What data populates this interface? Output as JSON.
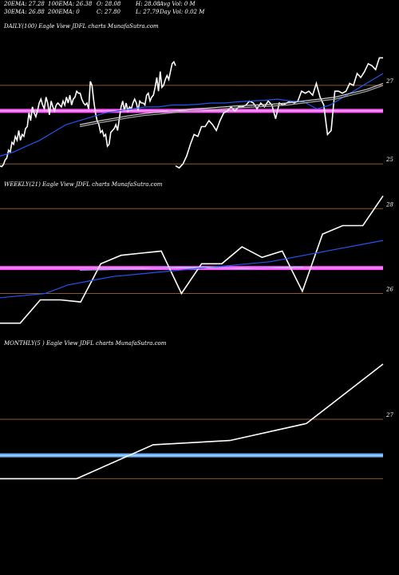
{
  "header": {
    "row1": [
      {
        "label": "20EMA: 27.28"
      },
      {
        "label": "100EMA: 26.38"
      },
      {
        "label": "O: 28.08"
      },
      {
        "label": "H: 28.08"
      },
      {
        "label": "Avg Vol: 0  M"
      }
    ],
    "row2": [
      {
        "label": "30EMA: 26.88"
      },
      {
        "label": "200EMA: 0"
      },
      {
        "label": "C: 27.80"
      },
      {
        "label": "L: 27.79"
      },
      {
        "label": "Day Vol: 0.02  M"
      }
    ]
  },
  "chart_data": [
    {
      "type": "line",
      "title": "DAILY(100) Eagle  View  JDFL charts MunafaSutra.com",
      "ylim": [
        24.7,
        28.4
      ],
      "ticks": [
        {
          "value": 27,
          "label": "27"
        },
        {
          "value": 25,
          "label": "25"
        }
      ],
      "hlines": [
        {
          "value": 27.0,
          "color": "#8b5a2b"
        },
        {
          "value": 25.0,
          "color": "#8b5a2b"
        },
        {
          "value": 26.35,
          "color": "#ff55ff"
        }
      ],
      "series": [
        {
          "color": "#ffffff",
          "values": [
            24.95,
            24.93,
            24.98,
            25.1,
            25.15,
            25.35,
            25.3,
            25.55,
            25.5,
            25.7,
            25.6,
            25.85,
            25.6,
            25.75,
            25.7,
            25.9,
            25.95,
            26.3,
            26.1,
            26.45,
            26.3,
            26.2,
            26.35,
            26.55,
            26.65,
            26.5,
            26.4,
            26.7,
            26.55,
            26.25,
            26.6,
            26.45,
            26.35,
            26.5,
            26.55,
            26.5,
            26.45,
            26.6,
            26.5,
            26.7,
            26.55,
            26.75,
            26.5,
            26.65,
            26.7,
            26.85,
            26.8,
            26.8,
            26.65,
            26.55,
            26.5,
            26.55,
            26.4,
            27.1,
            27.0,
            26.6,
            26.3,
            26.1,
            26.0,
            25.8,
            25.85,
            25.7,
            25.75,
            25.45,
            25.5,
            25.8,
            25.85,
            25.9,
            26.0,
            25.85,
            26.15,
            26.45,
            26.6,
            26.35,
            26.55,
            26.35,
            26.45,
            26.4,
            26.55,
            26.65,
            26.55,
            26.35,
            26.6,
            26.55,
            26.55,
            26.5,
            26.75,
            26.8,
            26.6,
            26.7,
            26.75,
            26.95,
            27.2,
            26.85,
            27.35,
            26.95,
            27.0,
            27.15,
            27.25,
            27.15,
            27.35,
            27.55,
            27.6,
            27.5
          ]
        },
        {
          "color": "#ffffff",
          "values": [
            24.95,
            24.9,
            25.0,
            25.2,
            25.5,
            25.75,
            25.7,
            25.95,
            25.95,
            26.1,
            26.0,
            25.85,
            26.1,
            26.3,
            26.35,
            26.45,
            26.35,
            26.45,
            26.45,
            26.5,
            26.6,
            26.55,
            26.4,
            26.55,
            26.45,
            26.6,
            26.5,
            26.15,
            26.55,
            26.5,
            26.55,
            26.6,
            26.55,
            26.6,
            26.85,
            26.8,
            26.85,
            26.75,
            27.05,
            26.7,
            26.5,
            25.75,
            25.85,
            26.85,
            26.85,
            26.8,
            26.85,
            27.05,
            27.0,
            27.3,
            27.2,
            27.35,
            27.55,
            27.5,
            27.4,
            27.7,
            27.7
          ]
        },
        {
          "color": "#2255ee",
          "values": [
            25.2,
            25.3,
            25.45,
            25.6,
            25.8,
            26.0,
            26.1,
            26.2,
            26.3,
            26.35,
            26.4,
            26.45,
            26.45,
            26.5,
            26.5,
            26.52,
            26.55,
            26.55,
            26.58,
            26.6,
            26.62,
            26.65,
            26.6,
            26.58,
            26.4,
            26.5,
            26.7,
            26.9,
            27.1,
            27.3
          ]
        },
        {
          "color": "#cccccc",
          "values": [
            26.0,
            26.08,
            26.15,
            26.22,
            26.28,
            26.32,
            26.36,
            26.4,
            26.42,
            26.45,
            26.48,
            26.5,
            26.52,
            26.55,
            26.6,
            26.65,
            26.7,
            26.8,
            26.9,
            27.05
          ]
        },
        {
          "color": "#aaaaaa",
          "values": [
            25.95,
            26.03,
            26.1,
            26.17,
            26.23,
            26.27,
            26.31,
            26.35,
            26.37,
            26.4,
            26.43,
            26.45,
            26.47,
            26.5,
            26.55,
            26.6,
            26.65,
            26.75,
            26.85,
            27.0
          ]
        }
      ]
    },
    {
      "type": "line",
      "title": "WEEKLY(21) Eagle  View  JDFL charts MunafaSutra.com",
      "ylim": [
        25.2,
        28.4
      ],
      "ticks": [
        {
          "value": 28,
          "label": "28"
        },
        {
          "value": 26,
          "label": "26"
        }
      ],
      "hlines": [
        {
          "value": 28.0,
          "color": "#8b5a2b"
        },
        {
          "value": 26.0,
          "color": "#8b5a2b"
        },
        {
          "value": 26.6,
          "color": "#ff55ff"
        }
      ],
      "series": [
        {
          "color": "#ffffff",
          "values": [
            25.3,
            25.3,
            25.85,
            25.85,
            25.8,
            26.7,
            26.9,
            26.95,
            27.0,
            26.0,
            26.7,
            26.7,
            27.1,
            26.85,
            27.0,
            26.05,
            27.4,
            27.6,
            27.6,
            28.3
          ]
        },
        {
          "color": "#2255ee",
          "values": [
            25.9,
            25.95,
            26.0,
            26.2,
            26.3,
            26.4,
            26.45,
            26.5,
            26.55,
            26.6,
            26.65,
            26.7,
            26.75,
            26.85,
            26.95,
            27.05,
            27.15,
            27.25
          ]
        },
        {
          "color": "#aaaaff",
          "values": [
            26.55,
            26.56,
            26.57,
            26.58,
            26.6,
            26.62,
            26.62,
            26.6,
            26.58,
            26.6,
            26.62,
            26.63
          ]
        }
      ]
    },
    {
      "type": "line",
      "title": "MONTHLY(5                     ) Eagle  View  JDFL charts MunafaSutra.com",
      "ylim": [
        25.4,
        28.6
      ],
      "ticks": [
        {
          "value": 27,
          "label": "27"
        }
      ],
      "hlines": [
        {
          "value": 27.0,
          "color": "#8b5a2b"
        },
        {
          "value": 25.6,
          "color": "#8b5a2b"
        },
        {
          "value": 26.15,
          "color": "#66aaff"
        }
      ],
      "series": [
        {
          "color": "#ffffff",
          "values": [
            25.6,
            25.6,
            26.4,
            26.5,
            26.9,
            28.3
          ]
        }
      ]
    }
  ]
}
